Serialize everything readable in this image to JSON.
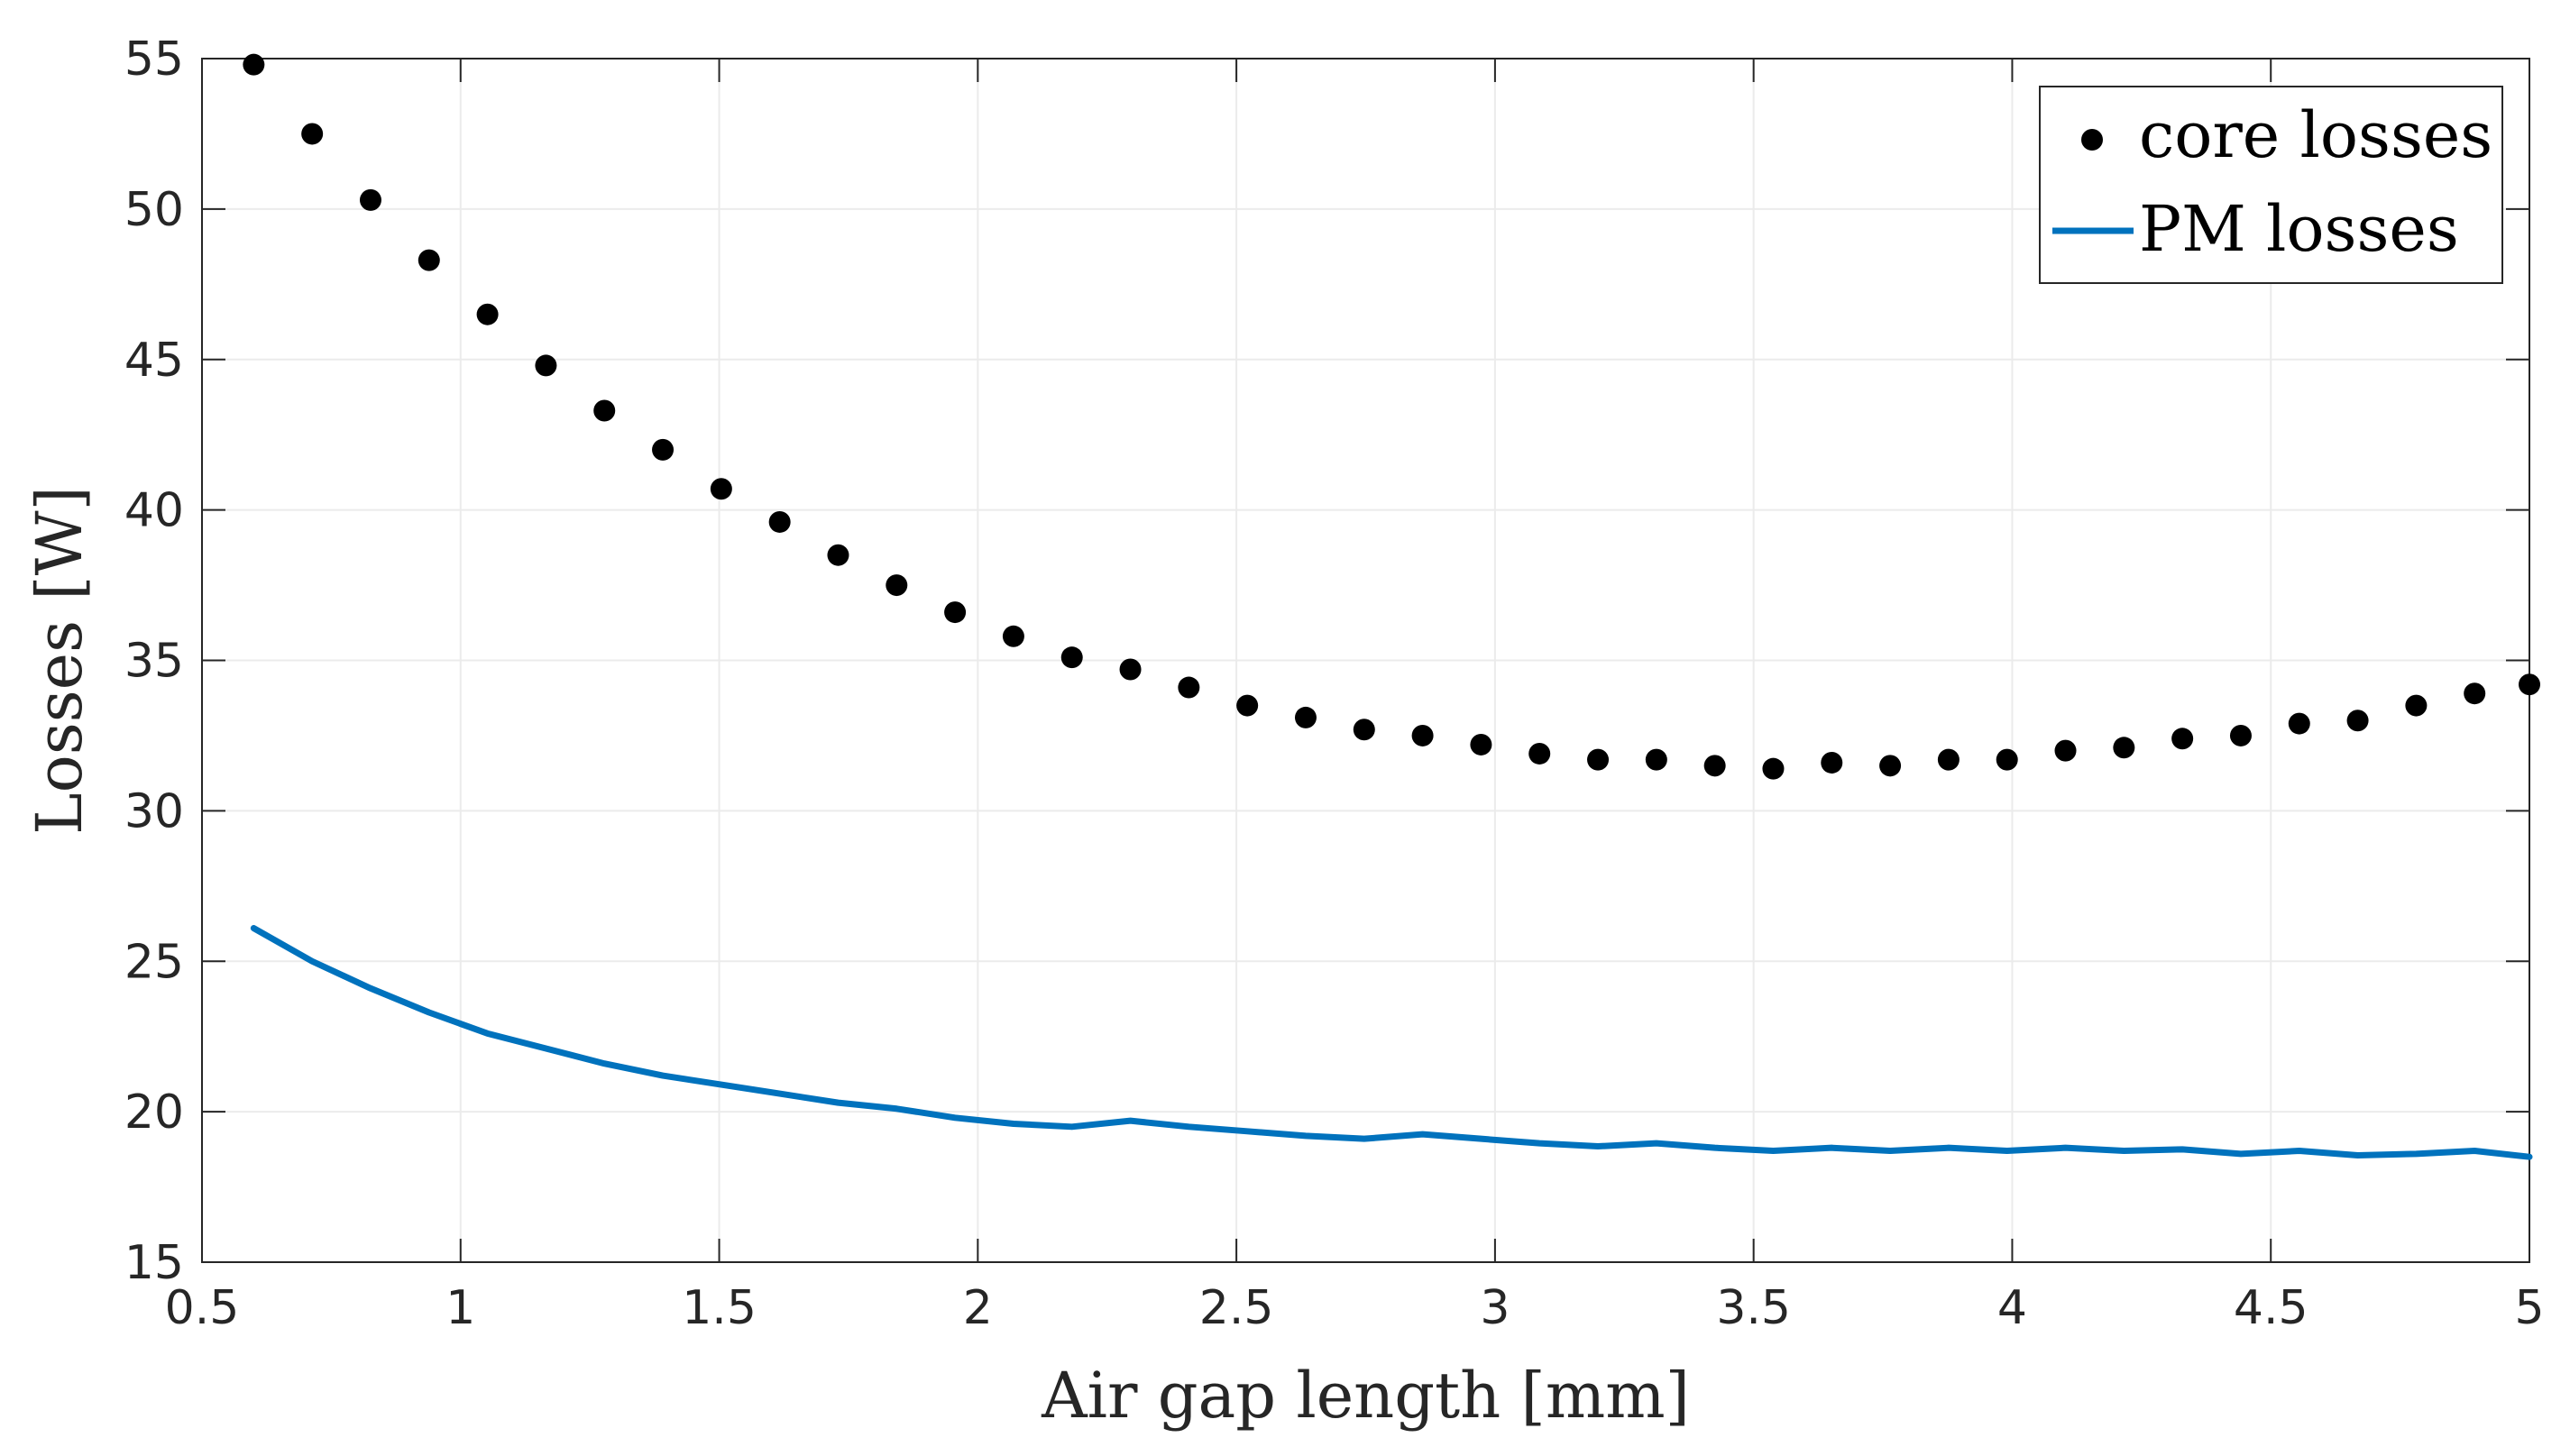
{
  "chart_data": {
    "type": "scatter+line",
    "title": "",
    "xlabel": "Air gap length [mm]",
    "ylabel": "Losses [W]",
    "xlim": [
      0.5,
      5
    ],
    "ylim": [
      15,
      55
    ],
    "xticks": [
      0.5,
      1,
      1.5,
      2,
      2.5,
      3,
      3.5,
      4,
      4.5,
      5
    ],
    "xtick_labels": [
      "0.5",
      "1",
      "1.5",
      "2",
      "2.5",
      "3",
      "3.5",
      "4",
      "4.5",
      "5"
    ],
    "yticks": [
      15,
      20,
      25,
      30,
      35,
      40,
      45,
      50,
      55
    ],
    "ytick_labels": [
      "15",
      "20",
      "25",
      "30",
      "35",
      "40",
      "45",
      "50",
      "55"
    ],
    "grid": true,
    "legend_position": "top-right",
    "series": [
      {
        "name": "core losses",
        "type": "scatter",
        "color": "#000000",
        "x": [
          0.6,
          0.713,
          0.826,
          0.939,
          1.052,
          1.165,
          1.278,
          1.391,
          1.504,
          1.617,
          1.73,
          1.843,
          1.956,
          2.069,
          2.182,
          2.295,
          2.408,
          2.521,
          2.634,
          2.747,
          2.86,
          2.973,
          3.086,
          3.199,
          3.312,
          3.425,
          3.538,
          3.651,
          3.764,
          3.877,
          3.99,
          4.103,
          4.216,
          4.329,
          4.442,
          4.555,
          4.668,
          4.781,
          4.894,
          5.0
        ],
        "y": [
          54.8,
          52.5,
          50.3,
          48.3,
          46.5,
          44.8,
          43.3,
          42.0,
          40.7,
          39.6,
          38.5,
          37.5,
          36.6,
          35.8,
          35.1,
          34.7,
          34.1,
          33.5,
          33.1,
          32.7,
          32.5,
          32.2,
          31.9,
          31.7,
          31.7,
          31.5,
          31.4,
          31.6,
          31.5,
          31.7,
          31.7,
          32.0,
          32.1,
          32.4,
          32.5,
          32.9,
          33.0,
          33.5,
          33.9,
          34.2
        ]
      },
      {
        "name": "PM losses",
        "type": "line",
        "color": "#0072BD",
        "x": [
          0.6,
          0.713,
          0.826,
          0.939,
          1.052,
          1.165,
          1.278,
          1.391,
          1.504,
          1.617,
          1.73,
          1.843,
          1.956,
          2.069,
          2.182,
          2.295,
          2.408,
          2.521,
          2.634,
          2.747,
          2.86,
          2.973,
          3.086,
          3.199,
          3.312,
          3.425,
          3.538,
          3.651,
          3.764,
          3.877,
          3.99,
          4.103,
          4.216,
          4.329,
          4.442,
          4.555,
          4.668,
          4.781,
          4.894,
          5.0
        ],
        "y": [
          26.1,
          25.0,
          24.1,
          23.3,
          22.6,
          22.1,
          21.6,
          21.2,
          20.9,
          20.6,
          20.3,
          20.1,
          19.8,
          19.6,
          19.5,
          19.7,
          19.5,
          19.35,
          19.2,
          19.1,
          19.25,
          19.1,
          18.95,
          18.85,
          18.95,
          18.8,
          18.7,
          18.8,
          18.7,
          18.8,
          18.7,
          18.8,
          18.7,
          18.75,
          18.6,
          18.7,
          18.55,
          18.6,
          18.7,
          18.5
        ]
      }
    ]
  }
}
